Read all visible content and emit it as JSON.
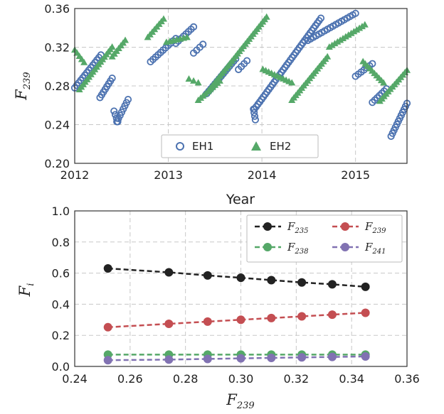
{
  "chart_data": [
    {
      "type": "scatter",
      "title": "",
      "xlabel": "Year",
      "ylabel": {
        "base": "F",
        "sub": "239"
      },
      "xlim": [
        2012.0,
        2015.55
      ],
      "ylim": [
        0.2,
        0.36
      ],
      "xticks": [
        2012,
        2013,
        2014,
        2015
      ],
      "xtick_labels": [
        "2012",
        "2013",
        "2014",
        "2015"
      ],
      "yticks": [
        0.2,
        0.24,
        0.28,
        0.32,
        0.36
      ],
      "ytick_labels": [
        "0.20",
        "0.24",
        "0.28",
        "0.32",
        "0.36"
      ],
      "grid": true,
      "legend_position": "bottom-center",
      "colors": {
        "EH1": "#4c72b0",
        "EH2": "#55a868"
      },
      "segments": [
        {
          "series": "EH1",
          "x0": 2012.0,
          "x1": 2012.28,
          "y0": 0.278,
          "y1": 0.312
        },
        {
          "series": "EH1",
          "x0": 2012.27,
          "x1": 2012.4,
          "y0": 0.268,
          "y1": 0.288
        },
        {
          "series": "EH1",
          "x0": 2012.42,
          "x1": 2012.46,
          "y0": 0.254,
          "y1": 0.243
        },
        {
          "series": "EH1",
          "x0": 2012.45,
          "x1": 2012.57,
          "y0": 0.243,
          "y1": 0.266
        },
        {
          "series": "EH1",
          "x0": 2012.81,
          "x1": 2013.08,
          "y0": 0.305,
          "y1": 0.329
        },
        {
          "series": "EH1",
          "x0": 2013.08,
          "x1": 2013.27,
          "y0": 0.324,
          "y1": 0.341
        },
        {
          "series": "EH1",
          "x0": 2013.27,
          "x1": 2013.37,
          "y0": 0.314,
          "y1": 0.323
        },
        {
          "series": "EH1",
          "x0": 2013.41,
          "x1": 2013.72,
          "y0": 0.272,
          "y1": 0.308
        },
        {
          "series": "EH1",
          "x0": 2013.75,
          "x1": 2013.84,
          "y0": 0.297,
          "y1": 0.306
        },
        {
          "series": "EH1",
          "x0": 2013.91,
          "x1": 2013.93,
          "y0": 0.256,
          "y1": 0.245
        },
        {
          "series": "EH1",
          "x0": 2013.92,
          "x1": 2014.63,
          "y0": 0.256,
          "y1": 0.35
        },
        {
          "series": "EH1",
          "x0": 2014.49,
          "x1": 2015.0,
          "y0": 0.327,
          "y1": 0.355
        },
        {
          "series": "EH1",
          "x0": 2015.0,
          "x1": 2015.18,
          "y0": 0.29,
          "y1": 0.303
        },
        {
          "series": "EH1",
          "x0": 2015.18,
          "x1": 2015.33,
          "y0": 0.263,
          "y1": 0.277
        },
        {
          "series": "EH1",
          "x0": 2015.38,
          "x1": 2015.55,
          "y0": 0.228,
          "y1": 0.262
        },
        {
          "series": "EH2",
          "x0": 2012.0,
          "x1": 2012.1,
          "y0": 0.317,
          "y1": 0.304
        },
        {
          "series": "EH2",
          "x0": 2012.05,
          "x1": 2012.4,
          "y0": 0.276,
          "y1": 0.32
        },
        {
          "series": "EH2",
          "x0": 2012.4,
          "x1": 2012.54,
          "y0": 0.31,
          "y1": 0.327
        },
        {
          "series": "EH2",
          "x0": 2012.78,
          "x1": 2012.95,
          "y0": 0.33,
          "y1": 0.349
        },
        {
          "series": "EH2",
          "x0": 2012.98,
          "x1": 2013.2,
          "y0": 0.325,
          "y1": 0.33
        },
        {
          "series": "EH2",
          "x0": 2013.22,
          "x1": 2013.32,
          "y0": 0.287,
          "y1": 0.283
        },
        {
          "series": "EH2",
          "x0": 2013.32,
          "x1": 2013.55,
          "y0": 0.265,
          "y1": 0.285
        },
        {
          "series": "EH2",
          "x0": 2013.43,
          "x1": 2014.05,
          "y0": 0.275,
          "y1": 0.351
        },
        {
          "series": "EH2",
          "x0": 2014.01,
          "x1": 2014.32,
          "y0": 0.297,
          "y1": 0.283
        },
        {
          "series": "EH2",
          "x0": 2014.32,
          "x1": 2014.7,
          "y0": 0.265,
          "y1": 0.31
        },
        {
          "series": "EH2",
          "x0": 2014.72,
          "x1": 2015.1,
          "y0": 0.32,
          "y1": 0.343
        },
        {
          "series": "EH2",
          "x0": 2015.08,
          "x1": 2015.3,
          "y0": 0.305,
          "y1": 0.283
        },
        {
          "series": "EH2",
          "x0": 2015.26,
          "x1": 2015.55,
          "y0": 0.264,
          "y1": 0.296
        }
      ],
      "legend": [
        {
          "label": "EH1",
          "marker": "circle"
        },
        {
          "label": "EH2",
          "marker": "triangle"
        }
      ]
    },
    {
      "type": "line",
      "title": "",
      "xlabel": {
        "base": "F",
        "sub": "239"
      },
      "ylabel": {
        "base": "F",
        "sub": "i"
      },
      "xlim": [
        0.24,
        0.36
      ],
      "ylim": [
        0.0,
        1.0
      ],
      "xticks": [
        0.24,
        0.26,
        0.28,
        0.3,
        0.32,
        0.34,
        0.36
      ],
      "xtick_labels": [
        "0.24",
        "0.26",
        "0.28",
        "0.30",
        "0.32",
        "0.34",
        "0.36"
      ],
      "yticks": [
        0.0,
        0.2,
        0.4,
        0.6,
        0.8,
        1.0
      ],
      "ytick_labels": [
        "0.0",
        "0.2",
        "0.4",
        "0.6",
        "0.8",
        "1.0"
      ],
      "grid": true,
      "legend_position": "top-right",
      "x": [
        0.252,
        0.274,
        0.288,
        0.3,
        0.311,
        0.322,
        0.333,
        0.345
      ],
      "series": [
        {
          "name": "F235",
          "label_base": "F",
          "label_sub": "235",
          "color": "#222222",
          "values": [
            0.63,
            0.605,
            0.585,
            0.57,
            0.555,
            0.54,
            0.528,
            0.512
          ]
        },
        {
          "name": "F238",
          "label_base": "F",
          "label_sub": "238",
          "color": "#55a868",
          "values": [
            0.076,
            0.076,
            0.076,
            0.076,
            0.076,
            0.076,
            0.076,
            0.076
          ]
        },
        {
          "name": "F239",
          "label_base": "F",
          "label_sub": "239",
          "color": "#c44e52",
          "values": [
            0.252,
            0.274,
            0.288,
            0.3,
            0.311,
            0.322,
            0.333,
            0.345
          ]
        },
        {
          "name": "F241",
          "label_base": "F",
          "label_sub": "241",
          "color": "#8172b2",
          "values": [
            0.04,
            0.044,
            0.048,
            0.052,
            0.055,
            0.058,
            0.061,
            0.064
          ]
        }
      ]
    }
  ]
}
